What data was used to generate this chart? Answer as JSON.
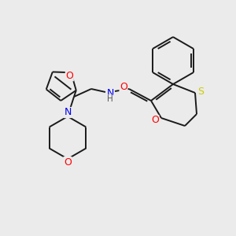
{
  "background_color": "#ebebeb",
  "bond_color": "#1a1a1a",
  "atom_colors": {
    "O": "#ff0000",
    "N": "#0000ee",
    "S": "#cccc00",
    "H": "#555555",
    "C": "#1a1a1a"
  },
  "figsize": [
    3.0,
    3.0
  ],
  "dpi": 100,
  "lw": 1.4,
  "fontsize": 8.5
}
